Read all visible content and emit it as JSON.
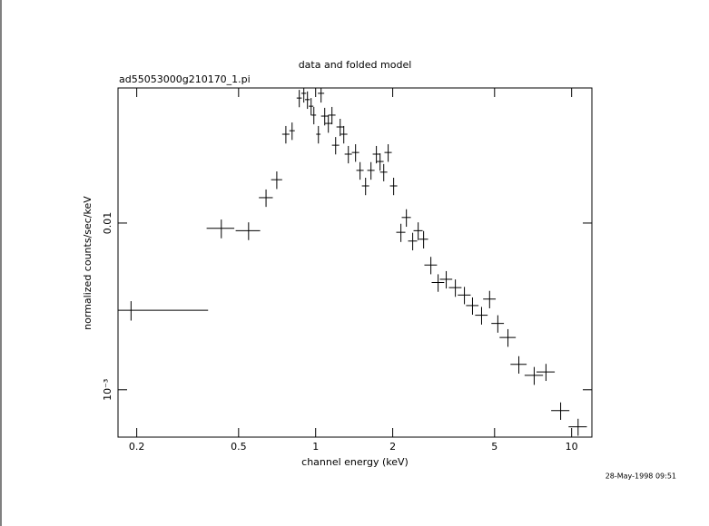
{
  "chart_data": {
    "type": "scatter",
    "title": "data and folded model",
    "subtitle": "ad55053000g210170_1.pi",
    "xlabel": "channel energy (keV)",
    "ylabel": "normalized counts/sec/keV",
    "timestamp": "28-May-1998 09:51",
    "xscale": "log",
    "yscale": "log",
    "color": "#000000",
    "xlim": [
      0.169,
      12
    ],
    "ylim": [
      0.00052,
      0.0646
    ],
    "xticks": [
      0.2,
      0.5,
      1,
      2,
      5,
      10
    ],
    "yticks": [
      {
        "value": 0.001,
        "label": "10⁻³"
      },
      0.01
    ],
    "x": [
      0.19,
      0.428,
      0.547,
      0.64,
      0.705,
      0.765,
      0.809,
      0.863,
      0.899,
      0.929,
      0.96,
      0.984,
      1.025,
      1.05,
      1.085,
      1.121,
      1.158,
      1.197,
      1.247,
      1.288,
      1.342,
      1.432,
      1.491,
      1.567,
      1.645,
      1.727,
      1.785,
      1.845,
      1.92,
      2.017,
      2.153,
      2.262,
      2.394,
      2.515,
      2.641,
      2.819,
      3.009,
      3.237,
      3.514,
      3.812,
      4.099,
      4.448,
      4.781,
      5.148,
      5.64,
      6.22,
      7.14,
      7.94,
      9.06,
      10.6
    ],
    "xerr": [
      0.19,
      0.053,
      0.06,
      0.04,
      0.035,
      0.025,
      0.02,
      0.02,
      0.02,
      0.02,
      0.02,
      0.02,
      0.02,
      0.03,
      0.035,
      0.037,
      0.038,
      0.039,
      0.041,
      0.042,
      0.044,
      0.047,
      0.049,
      0.051,
      0.054,
      0.056,
      0.058,
      0.06,
      0.063,
      0.066,
      0.088,
      0.093,
      0.098,
      0.103,
      0.108,
      0.16,
      0.17,
      0.18,
      0.2,
      0.22,
      0.23,
      0.25,
      0.27,
      0.29,
      0.41,
      0.45,
      0.59,
      0.65,
      0.74,
      0.87
    ],
    "values": [
      0.003,
      0.0093,
      0.009,
      0.0142,
      0.0182,
      0.0341,
      0.0358,
      0.0562,
      0.06,
      0.055,
      0.0502,
      0.0444,
      0.0341,
      0.06,
      0.0438,
      0.0396,
      0.0444,
      0.0293,
      0.0377,
      0.0341,
      0.0259,
      0.0265,
      0.0207,
      0.0167,
      0.0207,
      0.0259,
      0.0234,
      0.0202,
      0.0265,
      0.0167,
      0.0088,
      0.0108,
      0.0078,
      0.009,
      0.008,
      0.0056,
      0.0044,
      0.0046,
      0.0041,
      0.0037,
      0.0032,
      0.0028,
      0.0035,
      0.0025,
      0.00206,
      0.00142,
      0.00122,
      0.00128,
      0.00075,
      0.0006
    ],
    "yerr": [
      0.0004,
      0.0012,
      0.0011,
      0.0017,
      0.0022,
      0.0041,
      0.0043,
      0.0067,
      0.0072,
      0.0066,
      0.006,
      0.0053,
      0.0041,
      0.0072,
      0.0053,
      0.0048,
      0.0053,
      0.0035,
      0.0045,
      0.0041,
      0.0031,
      0.0032,
      0.0025,
      0.002,
      0.0025,
      0.0031,
      0.0028,
      0.0024,
      0.0032,
      0.002,
      0.0011,
      0.0013,
      0.00094,
      0.0011,
      0.00096,
      0.00067,
      0.00053,
      0.00055,
      0.00049,
      0.00044,
      0.00038,
      0.00034,
      0.00042,
      0.0003,
      0.00025,
      0.00017,
      0.00015,
      0.00015,
      9e-05,
      7e-05
    ]
  }
}
